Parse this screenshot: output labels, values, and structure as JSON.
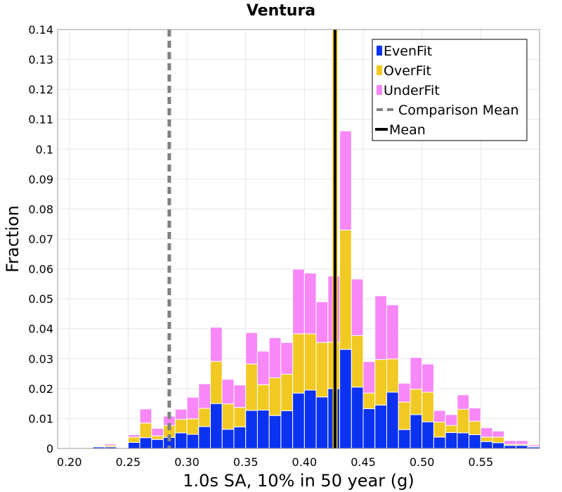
{
  "chart_data": {
    "type": "bar",
    "stacked": true,
    "title": "Ventura",
    "xlabel": "1.0s SA, 10% in 50 year (g)",
    "ylabel": "Fraction",
    "xlim": [
      0.19,
      0.6
    ],
    "ylim": [
      0,
      0.14
    ],
    "bin_width": 0.01,
    "grid": true,
    "legend_position": "top-right",
    "x_ticks": [
      "0.20",
      "0.25",
      "0.30",
      "0.35",
      "0.40",
      "0.45",
      "0.50",
      "0.55"
    ],
    "x_tick_values": [
      0.2,
      0.25,
      0.3,
      0.35,
      0.4,
      0.45,
      0.5,
      0.55
    ],
    "y_ticks": [
      "0",
      "0.01",
      "0.02",
      "0.03",
      "0.04",
      "0.05",
      "0.06",
      "0.07",
      "0.08",
      "0.09",
      "0.1",
      "0.11",
      "0.12",
      "0.13",
      "0.14"
    ],
    "y_tick_values": [
      0,
      0.01,
      0.02,
      0.03,
      0.04,
      0.05,
      0.06,
      0.07,
      0.08,
      0.09,
      0.1,
      0.11,
      0.12,
      0.13,
      0.14
    ],
    "bin_starts": [
      0.2,
      0.21,
      0.22,
      0.23,
      0.24,
      0.25,
      0.26,
      0.27,
      0.28,
      0.29,
      0.3,
      0.31,
      0.32,
      0.33,
      0.34,
      0.35,
      0.36,
      0.37,
      0.38,
      0.39,
      0.4,
      0.41,
      0.42,
      0.43,
      0.44,
      0.45,
      0.46,
      0.47,
      0.48,
      0.49,
      0.5,
      0.51,
      0.52,
      0.53,
      0.54,
      0.55,
      0.56,
      0.57,
      0.58,
      0.59
    ],
    "series": [
      {
        "name": "EvenFit",
        "color": "#0a32f0",
        "values": [
          0,
          0,
          0.0005,
          0.0005,
          0,
          0.002,
          0.0036,
          0.003,
          0.0037,
          0.0052,
          0.0047,
          0.0073,
          0.015,
          0.0064,
          0.0072,
          0.0127,
          0.0128,
          0.011,
          0.0126,
          0.0185,
          0.0195,
          0.0172,
          0.02,
          0.0331,
          0.0205,
          0.0133,
          0.0145,
          0.0188,
          0.0063,
          0.0113,
          0.0089,
          0.0038,
          0.0053,
          0.0052,
          0.0046,
          0.0023,
          0.0019,
          0.001,
          0.001,
          0.0005
        ]
      },
      {
        "name": "OverFit",
        "color": "#f2c922",
        "values": [
          0,
          0,
          0.0002,
          0.0005,
          0,
          0.0018,
          0.0049,
          0.0012,
          0.004,
          0.0045,
          0.0052,
          0.0061,
          0.0141,
          0.0085,
          0.0065,
          0.0155,
          0.0085,
          0.0126,
          0.0122,
          0.0198,
          0.0188,
          0.0182,
          0.0155,
          0.0399,
          0.0172,
          0.0052,
          0.0152,
          0.0111,
          0.0092,
          0.0085,
          0.0099,
          0.005,
          0.0024,
          0.0079,
          0.0045,
          0.0015,
          0.0019,
          0.0004,
          0.0004,
          0.0002
        ]
      },
      {
        "name": "UnderFit",
        "color": "#f887f8",
        "values": [
          0,
          0,
          0,
          0.0005,
          0,
          0.0008,
          0.0047,
          0.0025,
          0.0031,
          0.0034,
          0.0072,
          0.0082,
          0.0114,
          0.0082,
          0.0075,
          0.0105,
          0.0112,
          0.0134,
          0.0106,
          0.0216,
          0.0203,
          0.0136,
          0.0221,
          0.0331,
          0.0189,
          0.0105,
          0.0213,
          0.0181,
          0.0063,
          0.0106,
          0.0094,
          0.0039,
          0.0036,
          0.0048,
          0.0044,
          0.0031,
          0.002,
          0.0012,
          0.0012,
          0.0005
        ]
      }
    ],
    "lines": [
      {
        "name": "Comparison Mean",
        "x": 0.285,
        "style": "dashed",
        "color": "#808080"
      },
      {
        "name": "Mean",
        "x": 0.426,
        "style": "solid",
        "color": "#000000"
      }
    ]
  }
}
